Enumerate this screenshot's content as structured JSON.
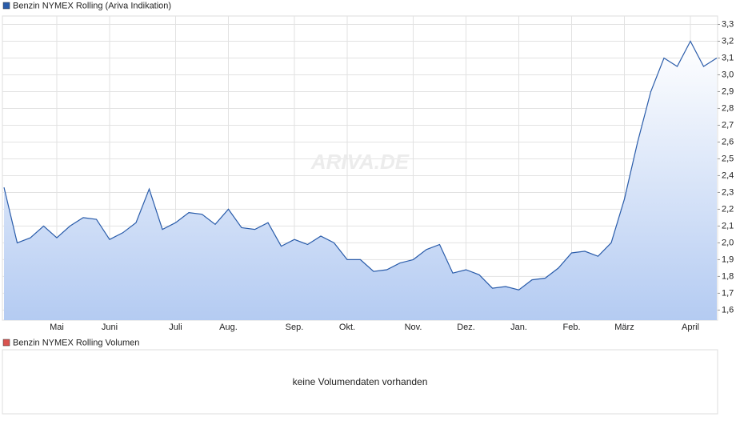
{
  "chart_data": [
    {
      "type": "area",
      "categories": [
        null,
        null,
        null,
        null,
        "Mai",
        null,
        null,
        null,
        "Juni",
        null,
        null,
        null,
        null,
        "Juli",
        null,
        null,
        null,
        "Aug.",
        null,
        null,
        null,
        null,
        "Sep.",
        null,
        null,
        null,
        "Okt.",
        null,
        null,
        null,
        null,
        "Nov.",
        null,
        null,
        null,
        "Dez.",
        null,
        null,
        null,
        "Jan.",
        null,
        null,
        null,
        "Feb.",
        null,
        null,
        null,
        "März",
        null,
        null,
        null,
        null,
        "April",
        null,
        null
      ],
      "series": [
        {
          "name": "Benzin NYMEX Rolling (Ariva Indikation)",
          "color": "#2a5caa",
          "values": [
            2.33,
            2.0,
            2.03,
            2.1,
            2.03,
            2.1,
            2.15,
            2.14,
            2.02,
            2.06,
            2.12,
            2.32,
            2.08,
            2.12,
            2.18,
            2.17,
            2.11,
            2.2,
            2.09,
            2.08,
            2.12,
            1.98,
            2.02,
            1.99,
            2.04,
            2.0,
            1.9,
            1.9,
            1.83,
            1.84,
            1.88,
            1.9,
            1.96,
            1.99,
            1.82,
            1.84,
            1.81,
            1.73,
            1.74,
            1.72,
            1.78,
            1.79,
            1.85,
            1.94,
            1.95,
            1.92,
            2.0,
            2.26,
            2.6,
            2.9,
            3.1,
            3.05,
            3.2,
            3.05,
            3.1
          ]
        }
      ],
      "ylim": [
        1.54,
        3.35
      ],
      "yticks": [
        {
          "value": 1.6,
          "label": "1,6"
        },
        {
          "value": 1.7,
          "label": "1,7"
        },
        {
          "value": 1.8,
          "label": "1,8"
        },
        {
          "value": 1.9,
          "label": "1,9"
        },
        {
          "value": 2.0,
          "label": "2,0"
        },
        {
          "value": 2.1,
          "label": "2,1"
        },
        {
          "value": 2.2,
          "label": "2,2"
        },
        {
          "value": 2.3,
          "label": "2,3"
        },
        {
          "value": 2.4,
          "label": "2,4"
        },
        {
          "value": 2.5,
          "label": "2,5"
        },
        {
          "value": 2.6,
          "label": "2,6"
        },
        {
          "value": 2.7,
          "label": "2,7"
        },
        {
          "value": 2.8,
          "label": "2,8"
        },
        {
          "value": 2.9,
          "label": "2,9"
        },
        {
          "value": 3.0,
          "label": "3,0"
        },
        {
          "value": 3.1,
          "label": "3,1"
        },
        {
          "value": 3.2,
          "label": "3,2"
        },
        {
          "value": 3.3,
          "label": "3,3"
        }
      ],
      "grid": true,
      "watermark": "ARIVA.DE"
    },
    {
      "type": "bar",
      "series": [
        {
          "name": "Benzin NYMEX Rolling Volumen",
          "color": "#d9534f",
          "values": []
        }
      ],
      "message": "keine Volumendaten vorhanden"
    }
  ]
}
